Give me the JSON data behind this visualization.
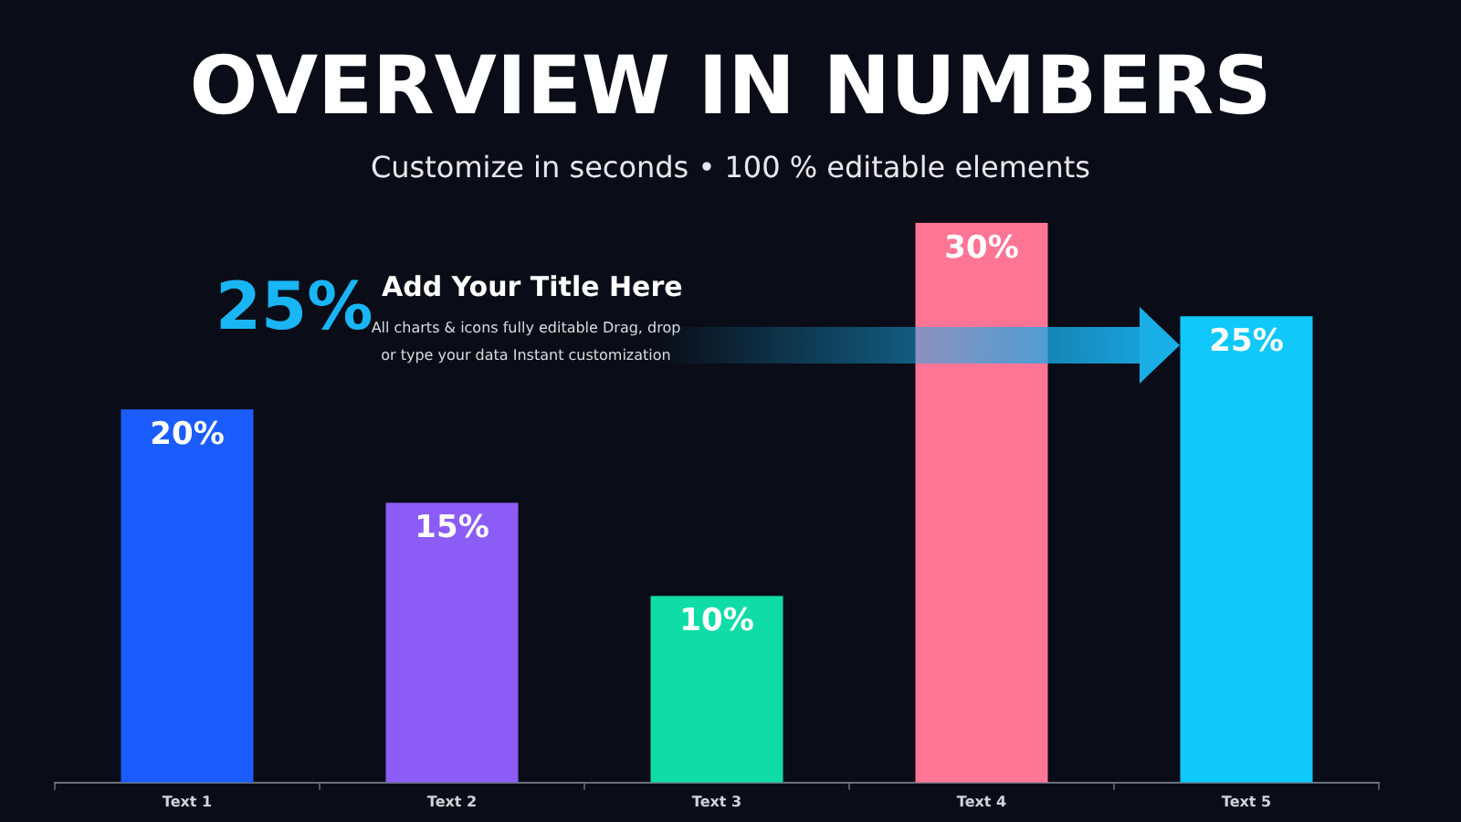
{
  "chart_data": {
    "type": "bar",
    "title": "OVERVIEW IN NUMBERS",
    "subtitle": "Customize in seconds • 100 % editable elements",
    "categories": [
      "Text 1",
      "Text 2",
      "Text 3",
      "Text 4",
      "Text 5"
    ],
    "values": [
      20,
      15,
      10,
      30,
      25
    ],
    "colors": [
      "#1a5cff",
      "#8b5cf6",
      "#10dca8",
      "#ff7596",
      "#10c8fa"
    ],
    "value_labels": [
      "20%",
      "15%",
      "10%",
      "30%",
      "25%"
    ],
    "annotations": [
      "25%",
      "Add Your Title Here",
      "All charts & icons fully editable Drag, drop or type your data Instant customization"
    ]
  }
}
